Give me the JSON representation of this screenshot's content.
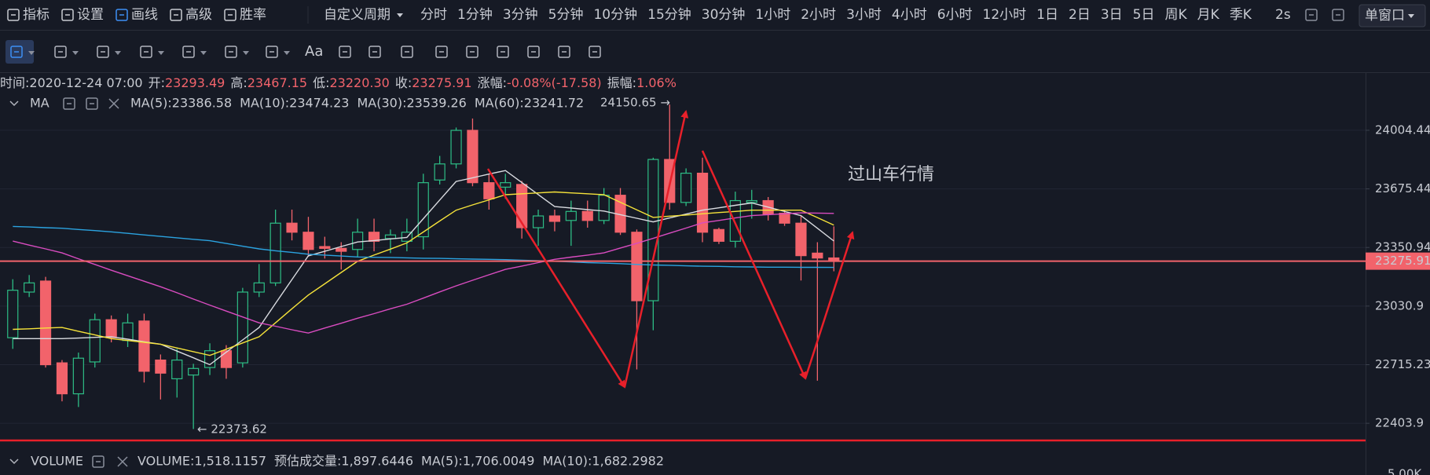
{
  "toolbar": {
    "tools": [
      "指标",
      "设置",
      "画线",
      "高级",
      "胜率"
    ],
    "active_tool": "画线",
    "custom_period": "自定义周期",
    "periods": [
      "分时",
      "1分钟",
      "3分钟",
      "5分钟",
      "10分钟",
      "15分钟",
      "30分钟",
      "1小时",
      "2小时",
      "3小时",
      "4小时",
      "6小时",
      "12小时",
      "1日",
      "2日",
      "3日",
      "5日",
      "周K",
      "月K",
      "季K"
    ],
    "active_period": "1小时",
    "refresh": "2s",
    "window_mode": "单窗口",
    "text_tool": "Aa"
  },
  "info": [
    {
      "label": "时间:",
      "value": "2020-12-24 07:00"
    },
    {
      "label": "开:",
      "value": "23293.49"
    },
    {
      "label": "高:",
      "value": "23467.15"
    },
    {
      "label": "低:",
      "value": "23220.30"
    },
    {
      "label": "收:",
      "value": "23275.91"
    },
    {
      "label": "涨幅:",
      "value": "-0.08%(-17.58)"
    },
    {
      "label": "振幅:",
      "value": "1.06%"
    }
  ],
  "ma_legend": {
    "name": "MA"
  },
  "volume": {
    "name": "VOLUME",
    "items": [
      {
        "text": "VOLUME:1,518.1157",
        "color": "#d6d8de"
      },
      {
        "text": "预估成交量:1,897.6446",
        "color": "#6b7080"
      },
      {
        "text": "MA(5):1,706.0049",
        "color": "#d6d8de"
      },
      {
        "text": "MA(10):1,682.2982",
        "color": "#f5e23a"
      }
    ],
    "axis_label": "5.00K"
  },
  "chart_data": {
    "type": "candlestick",
    "log_scale": true,
    "grid": true,
    "up_color": "#2dbd85",
    "down_color": "#f2636b",
    "categories": [
      null,
      null,
      null,
      null,
      null,
      null,
      null,
      null,
      null,
      null,
      null,
      null,
      null,
      null,
      null,
      null,
      null,
      null,
      null,
      null,
      null,
      null,
      null,
      null,
      null,
      null,
      null,
      null,
      null,
      null,
      null,
      null,
      null,
      null,
      null,
      null,
      null,
      null,
      null,
      null,
      null,
      null,
      null,
      null,
      null,
      null,
      null,
      null,
      null,
      null,
      null
    ],
    "open": [
      22860,
      23107,
      23167,
      22725,
      22560,
      22730,
      22957,
      22845,
      22950,
      22740,
      22640,
      22660,
      22700,
      22790,
      22725,
      23107,
      23157,
      23485,
      23435,
      23356,
      23346,
      23340,
      23435,
      23400,
      23385,
      23410,
      23725,
      23815,
      24004,
      23710,
      23685,
      23700,
      23460,
      23525,
      23500,
      23550,
      23500,
      23640,
      23435,
      23060,
      23840,
      23600,
      23763,
      23450,
      23385,
      23600,
      23610,
      23540,
      23485,
      23320,
      23293.49
    ],
    "high": [
      23177,
      23200,
      23190,
      22740,
      22780,
      22990,
      22980,
      22990,
      22990,
      22770,
      22800,
      22720,
      22830,
      22820,
      23130,
      23260,
      23560,
      23560,
      23520,
      23410,
      23380,
      23510,
      23510,
      23450,
      23510,
      23760,
      23860,
      24020,
      24071,
      23760,
      23760,
      23720,
      23560,
      23560,
      23610,
      23610,
      23680,
      23680,
      23450,
      23850,
      24150.65,
      23790,
      23850,
      23460,
      23660,
      23670,
      23630,
      23560,
      23530,
      23380,
      23467.15
    ],
    "low": [
      22800,
      23080,
      22700,
      22520,
      22490,
      22700,
      22835,
      22810,
      22620,
      22530,
      22540,
      22373.62,
      22660,
      22640,
      22700,
      23080,
      23140,
      23390,
      23300,
      23290,
      23230,
      23300,
      23330,
      23320,
      23330,
      23340,
      23700,
      23790,
      23690,
      23560,
      23620,
      23400,
      23360,
      23440,
      23360,
      23460,
      23480,
      23420,
      22690,
      22900,
      23560,
      23580,
      23380,
      23370,
      23350,
      23510,
      23500,
      23470,
      23170,
      22630,
      23220.3
    ],
    "close": [
      23117,
      23157,
      22715,
      22560,
      22750,
      22957,
      22860,
      22940,
      22680,
      22670,
      22740,
      22695,
      22790,
      22700,
      23107,
      23157,
      23485,
      23435,
      23340,
      23346,
      23330,
      23435,
      23385,
      23420,
      23435,
      23710,
      23815,
      24004,
      23710,
      23620,
      23710,
      23460,
      23525,
      23495,
      23550,
      23500,
      23640,
      23435,
      23060,
      23840,
      23600,
      23763,
      23435,
      23385,
      23610,
      23610,
      23535,
      23485,
      23306,
      23293,
      23275.91
    ],
    "series": [
      {
        "label": "MA(5):23386.58",
        "color": "#d9dbe0",
        "values": [
          22855,
          22855,
          22855,
          22855,
          22858,
          22862,
          22865,
          22852,
          22838,
          22825,
          22788,
          22752,
          22715,
          22782,
          22848,
          22915,
          23045,
          23175,
          23305,
          23330,
          23356,
          23381,
          23389,
          23398,
          23406,
          23510,
          23613,
          23717,
          23737,
          23758,
          23778,
          23711,
          23644,
          23577,
          23569,
          23560,
          23552,
          23532,
          23512,
          23492,
          23514,
          23535,
          23557,
          23570,
          23584,
          23597,
          23574,
          23550,
          23527,
          23457,
          23386.58
        ]
      },
      {
        "label": "MA(10):23474.23",
        "color": "#f5e23a",
        "values": [
          22905,
          22908,
          22912,
          22915,
          22895,
          22875,
          22855,
          22845,
          22835,
          22825,
          22805,
          22785,
          22765,
          22798,
          22832,
          22865,
          22940,
          23016,
          23091,
          23152,
          23214,
          23275,
          23309,
          23342,
          23376,
          23436,
          23497,
          23557,
          23586,
          23614,
          23643,
          23648,
          23653,
          23658,
          23653,
          23648,
          23643,
          23601,
          23559,
          23517,
          23524,
          23530,
          23537,
          23544,
          23550,
          23557,
          23557,
          23557,
          23557,
          23516,
          23474.23
        ]
      },
      {
        "label": "MA(30):23539.26",
        "color": "#d94cc0",
        "values": [
          23386,
          23364,
          23343,
          23321,
          23289,
          23258,
          23226,
          23196,
          23166,
          23136,
          23103,
          23069,
          23036,
          23004,
          22972,
          22940,
          22922,
          22903,
          22885,
          22912,
          22938,
          22965,
          22990,
          23016,
          23041,
          23074,
          23108,
          23141,
          23171,
          23201,
          23231,
          23249,
          23268,
          23286,
          23298,
          23309,
          23321,
          23348,
          23374,
          23401,
          23430,
          23458,
          23487,
          23500,
          23514,
          23527,
          23532,
          23537,
          23542,
          23541,
          23539.26
        ]
      },
      {
        "label": "MA(60):23241.72",
        "color": "#2ba3e0",
        "values": [
          23467,
          23464,
          23460,
          23457,
          23450,
          23444,
          23437,
          23429,
          23420,
          23412,
          23404,
          23396,
          23388,
          23373,
          23358,
          23343,
          23333,
          23324,
          23314,
          23309,
          23304,
          23299,
          23297,
          23296,
          23294,
          23292,
          23291,
          23289,
          23287,
          23286,
          23284,
          23281,
          23278,
          23275,
          23272,
          23268,
          23265,
          23262,
          23258,
          23255,
          23253,
          23250,
          23248,
          23247,
          23245,
          23244,
          23243,
          23243,
          23242,
          23242,
          23241.72
        ]
      }
    ],
    "ylim": [
      22330,
      24236
    ],
    "yticks": [
      24004.44,
      23675.44,
      23350.94,
      23030.9,
      22715.23,
      22403.9
    ],
    "annotations": [
      {
        "text": "24150.65 →"
      },
      {
        "text": "← 22373.62"
      },
      {
        "text": "过山车行情"
      }
    ]
  }
}
